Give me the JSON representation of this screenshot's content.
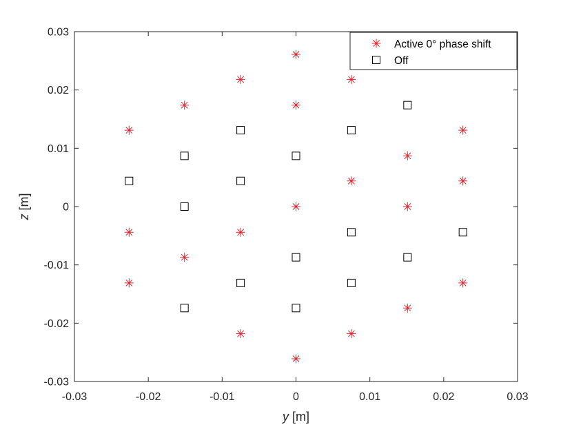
{
  "chart_data": {
    "type": "scatter",
    "title": "",
    "xlabel": {
      "var": "y",
      "unit": " [m]"
    },
    "ylabel": {
      "var": "z",
      "unit": " [m]"
    },
    "xlim": [
      -0.03,
      0.03
    ],
    "ylim": [
      -0.03,
      0.03
    ],
    "xticks": [
      -0.03,
      -0.02,
      -0.01,
      0,
      0.01,
      0.02,
      0.03
    ],
    "yticks": [
      -0.03,
      -0.02,
      -0.01,
      0,
      0.01,
      0.02,
      0.03
    ],
    "xtick_labels": [
      "-0.03",
      "-0.02",
      "-0.01",
      "0",
      "0.01",
      "0.02",
      "0.03"
    ],
    "ytick_labels": [
      "-0.03",
      "-0.02",
      "-0.01",
      "0",
      "0.01",
      "0.02",
      "0.03"
    ],
    "grid": false,
    "box": true,
    "legend_position": "top-right",
    "series": [
      {
        "name": "Active 0° phase shift",
        "marker": "asterisk",
        "color": "#e8202a",
        "points": [
          [
            0,
            0.0261
          ],
          [
            -0.0075,
            0.0218
          ],
          [
            0.0075,
            0.0218
          ],
          [
            -0.0151,
            0.0174
          ],
          [
            0,
            0.0174
          ],
          [
            -0.0226,
            0.0131
          ],
          [
            0.0226,
            0.0131
          ],
          [
            0.0151,
            0.0087
          ],
          [
            0.0075,
            0.0044
          ],
          [
            0.0226,
            0.0044
          ],
          [
            0,
            0
          ],
          [
            0.0151,
            0
          ],
          [
            -0.0226,
            -0.0044
          ],
          [
            -0.0075,
            -0.0044
          ],
          [
            -0.0151,
            -0.0087
          ],
          [
            -0.0226,
            -0.0131
          ],
          [
            0.0226,
            -0.0131
          ],
          [
            0.0151,
            -0.0174
          ],
          [
            -0.0075,
            -0.0218
          ],
          [
            0.0075,
            -0.0218
          ],
          [
            0,
            -0.0261
          ]
        ]
      },
      {
        "name": "Off",
        "marker": "square",
        "color": "#000000",
        "points": [
          [
            0.0151,
            0.0174
          ],
          [
            -0.0075,
            0.0131
          ],
          [
            0.0075,
            0.0131
          ],
          [
            -0.0151,
            0.0087
          ],
          [
            0,
            0.0087
          ],
          [
            -0.0226,
            0.0044
          ],
          [
            -0.0075,
            0.0044
          ],
          [
            -0.0151,
            0
          ],
          [
            0.0075,
            -0.0044
          ],
          [
            0.0226,
            -0.0044
          ],
          [
            0,
            -0.0087
          ],
          [
            0.0151,
            -0.0087
          ],
          [
            -0.0075,
            -0.0131
          ],
          [
            0.0075,
            -0.0131
          ],
          [
            -0.0151,
            -0.0174
          ],
          [
            0,
            -0.0174
          ]
        ]
      }
    ]
  }
}
